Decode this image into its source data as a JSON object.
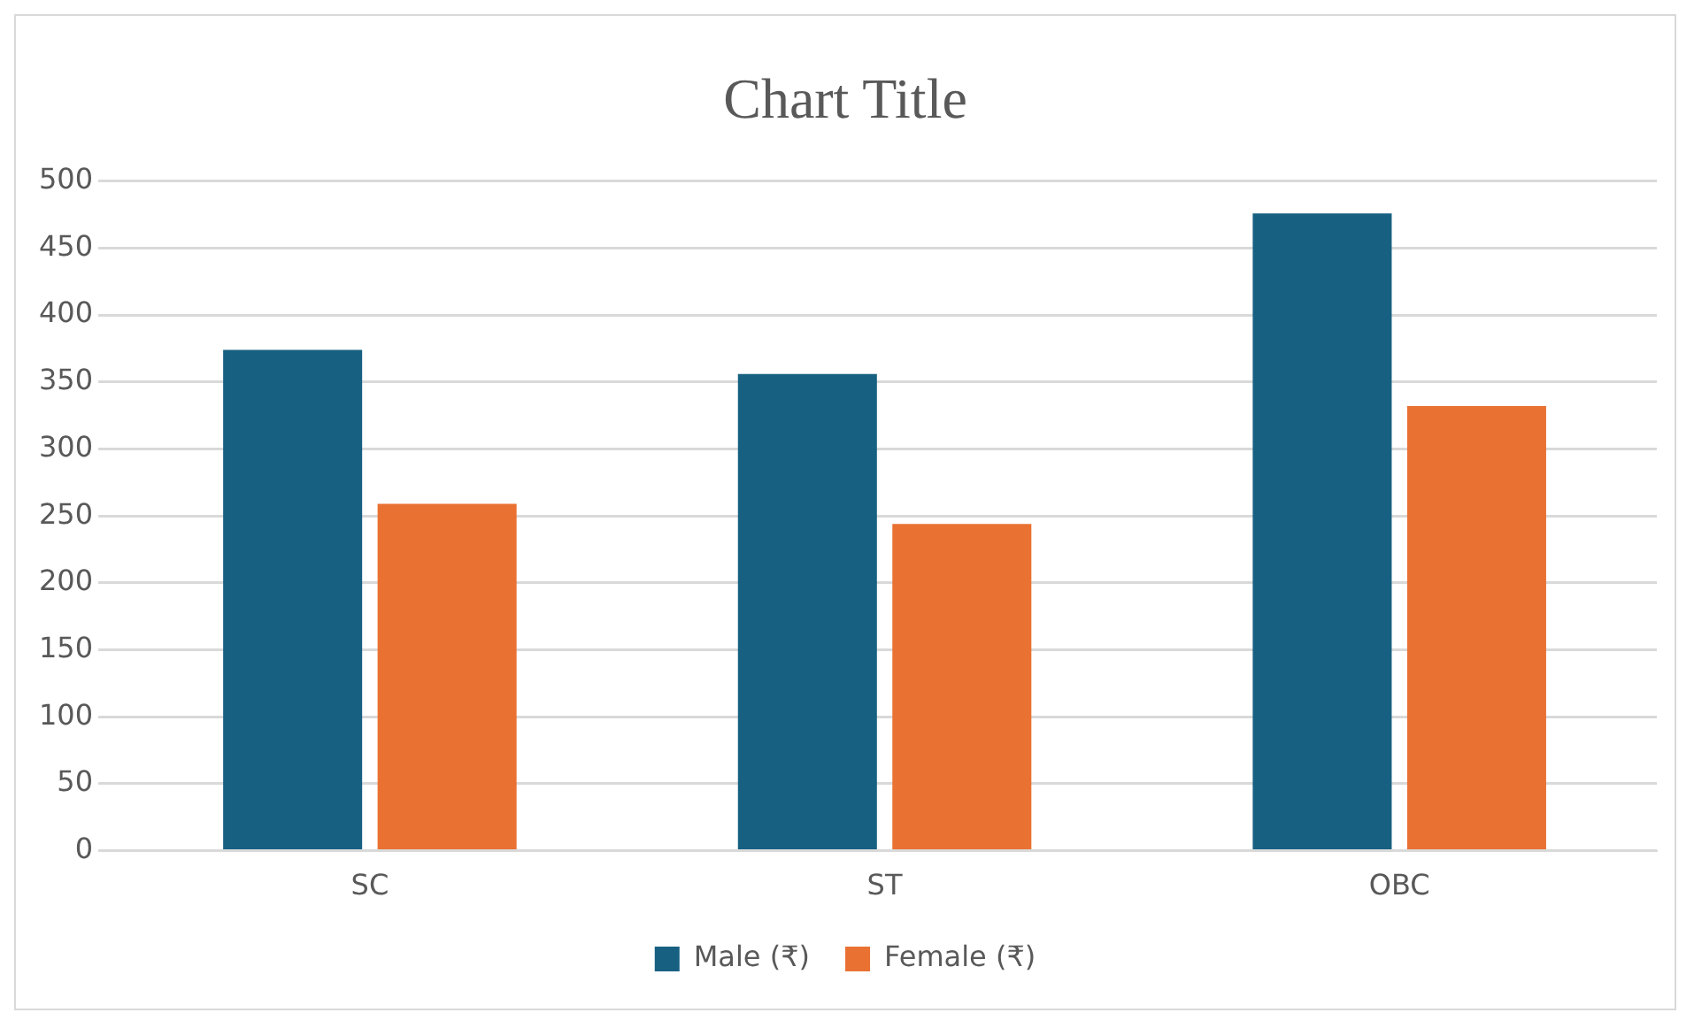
{
  "chart_data": {
    "type": "bar",
    "title": "Chart Title",
    "categories": [
      "SC",
      "ST",
      "OBC"
    ],
    "series": [
      {
        "name": "Male (₹)",
        "color": "#176082",
        "values": [
          374,
          356,
          476
        ]
      },
      {
        "name": "Female (₹)",
        "color": "#e97132",
        "values": [
          259,
          244,
          332
        ]
      }
    ],
    "ylim": [
      0,
      500
    ],
    "yticks": [
      0,
      50,
      100,
      150,
      200,
      250,
      300,
      350,
      400,
      450,
      500
    ],
    "grid": "y",
    "legend": "bottom"
  }
}
